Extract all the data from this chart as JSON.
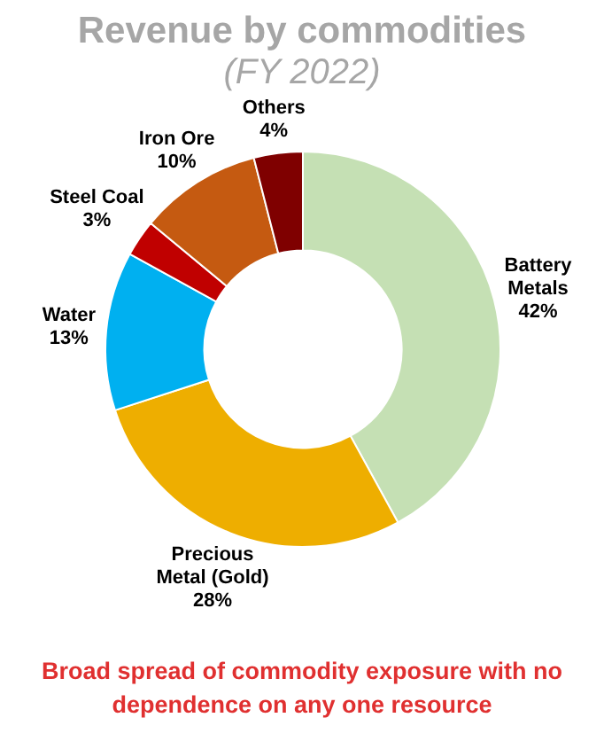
{
  "chart_data": {
    "type": "donut",
    "title": "Revenue by commodities",
    "subtitle": "(FY 2022)",
    "categories": [
      "Battery Metals",
      "Precious Metal (Gold)",
      "Water",
      "Steel Coal",
      "Iron Ore",
      "Others"
    ],
    "values": [
      42,
      28,
      13,
      3,
      10,
      4
    ],
    "colors": [
      "#c5e0b4",
      "#eeae00",
      "#00b0f0",
      "#c00000",
      "#c55a11",
      "#7f0000"
    ],
    "value_labels": [
      "42%",
      "28%",
      "13%",
      "3%",
      "10%",
      "4%"
    ],
    "legend": false,
    "annotations": [
      "Broad spread of commodity exposure with no dependence on any one resource"
    ]
  }
}
